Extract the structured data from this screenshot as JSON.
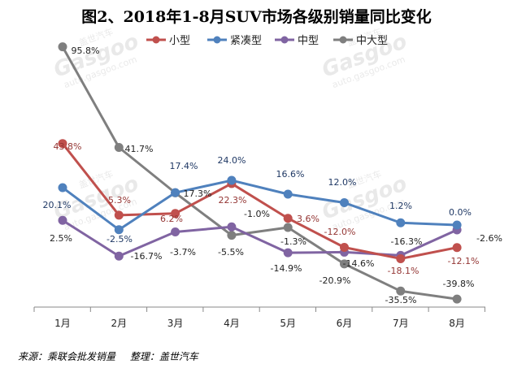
{
  "chart_data": {
    "type": "line",
    "title": "图2、2018年1-8月SUV市场各级别销量同比变化",
    "categories": [
      "1月",
      "2月",
      "3月",
      "4月",
      "5月",
      "6月",
      "7月",
      "8月"
    ],
    "xlabel": "",
    "ylabel": "",
    "ylim": [
      -45,
      100
    ],
    "grid": false,
    "legend_position": "top",
    "value_suffix": "%",
    "series": [
      {
        "name": "小型",
        "color": "#c0504d",
        "label_color": "#943634",
        "values": [
          43.8,
          5.3,
          6.2,
          22.3,
          3.6,
          -12.0,
          -18.1,
          -12.1
        ]
      },
      {
        "name": "紧凑型",
        "color": "#4f81bd",
        "label_color": "#1f3864",
        "values": [
          20.1,
          -2.5,
          17.4,
          24.0,
          16.6,
          12.0,
          1.2,
          0.0
        ]
      },
      {
        "name": "中型",
        "color": "#8064a2",
        "label_color": "#222222",
        "values": [
          2.5,
          -16.7,
          -3.7,
          -1.0,
          -14.9,
          -14.6,
          -16.3,
          -2.6
        ]
      },
      {
        "name": "中大型",
        "color": "#7f7f7f",
        "label_color": "#222222",
        "values": [
          95.8,
          41.7,
          17.3,
          -5.5,
          -1.3,
          -20.9,
          -35.5,
          -39.8
        ]
      }
    ]
  },
  "footer": {
    "source": "来源：乘联会批发销量",
    "editor": "整理：盖世汽车"
  },
  "watermark": {
    "logo_text": "Gasgoo",
    "url_text": "auto.gasgoo.com",
    "cn_text": "盖世汽车"
  }
}
